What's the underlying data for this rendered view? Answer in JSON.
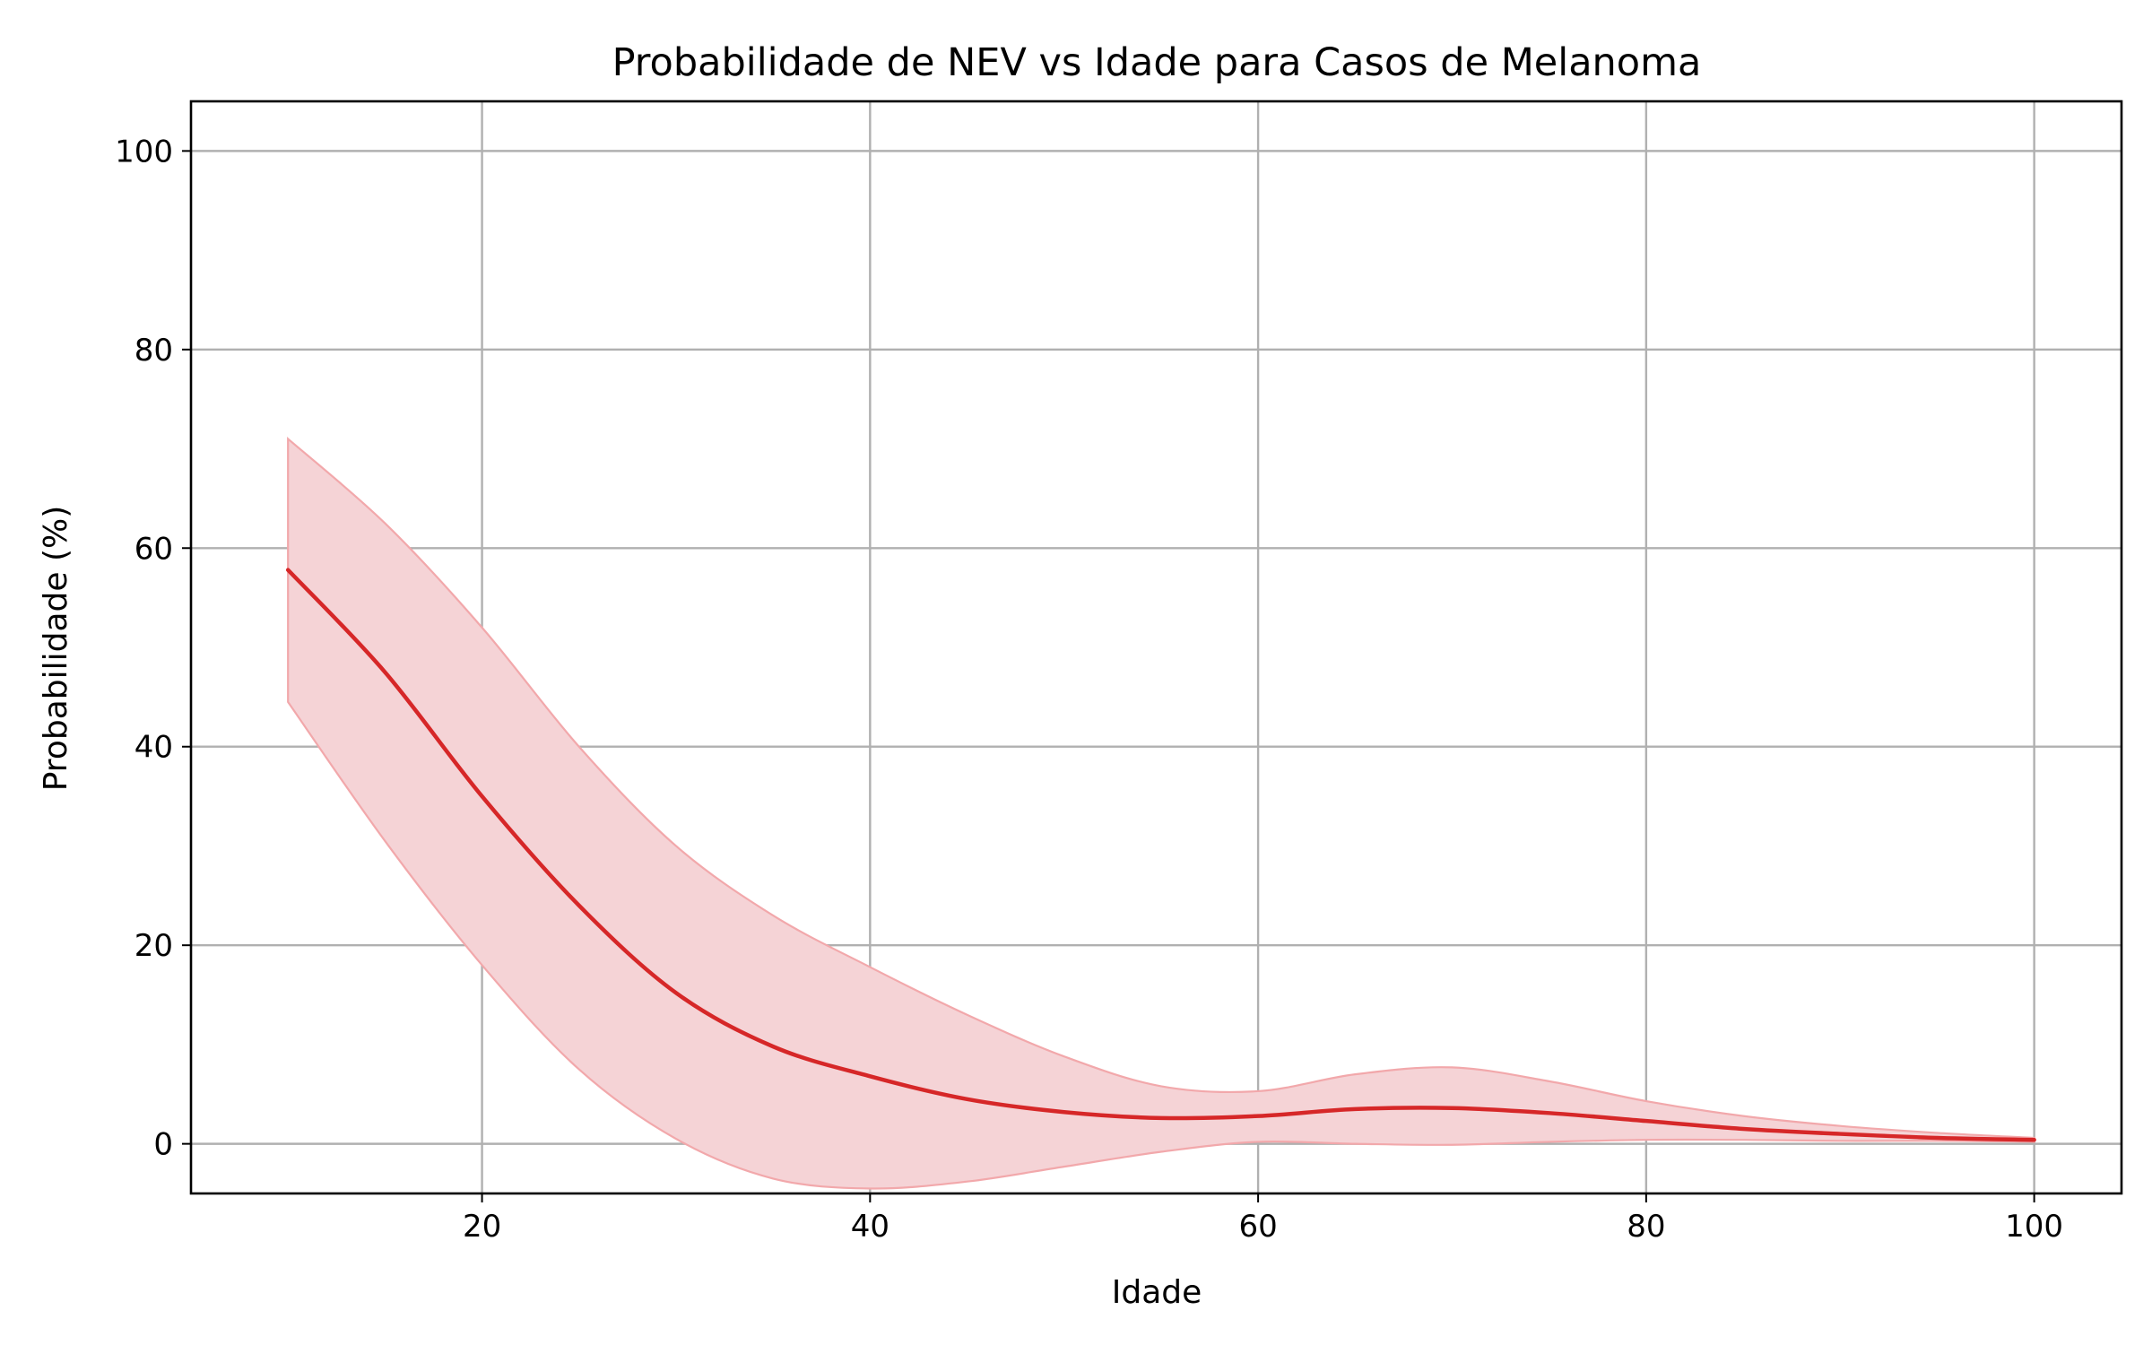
{
  "chart_data": {
    "type": "line",
    "title": "Probabilidade de NEV vs Idade para Casos de Melanoma",
    "xlabel": "Idade",
    "ylabel": "Probabilidade (%)",
    "xlim": [
      5,
      104.5
    ],
    "ylim": [
      -5,
      105
    ],
    "xticks": [
      20,
      40,
      60,
      80,
      100
    ],
    "yticks": [
      0,
      20,
      40,
      60,
      80,
      100
    ],
    "grid": true,
    "colors": {
      "line": "#d62728",
      "band_fill": "#f5d3d6",
      "band_edge": "#f2a8ab"
    },
    "series": [
      {
        "x": [
          10,
          15,
          20,
          25,
          30,
          35,
          40,
          45,
          50,
          55,
          60,
          65,
          70,
          75,
          80,
          85,
          90,
          95,
          100
        ],
        "values": [
          57.8,
          47.5,
          35.0,
          24.0,
          15.2,
          9.8,
          6.8,
          4.5,
          3.2,
          2.6,
          2.8,
          3.5,
          3.6,
          3.1,
          2.3,
          1.5,
          1.0,
          0.6,
          0.4
        ],
        "lower": [
          44.5,
          30.5,
          18.0,
          7.5,
          0.5,
          -3.5,
          -4.5,
          -3.8,
          -2.3,
          -0.8,
          0.2,
          0.0,
          -0.1,
          0.2,
          0.4,
          0.4,
          0.3,
          0.3,
          0.2
        ],
        "upper": [
          71.0,
          62.5,
          52.0,
          40.0,
          30.0,
          23.0,
          17.8,
          13.0,
          8.8,
          5.8,
          5.3,
          7.0,
          7.7,
          6.3,
          4.3,
          2.8,
          1.8,
          1.1,
          0.6
        ]
      }
    ]
  }
}
